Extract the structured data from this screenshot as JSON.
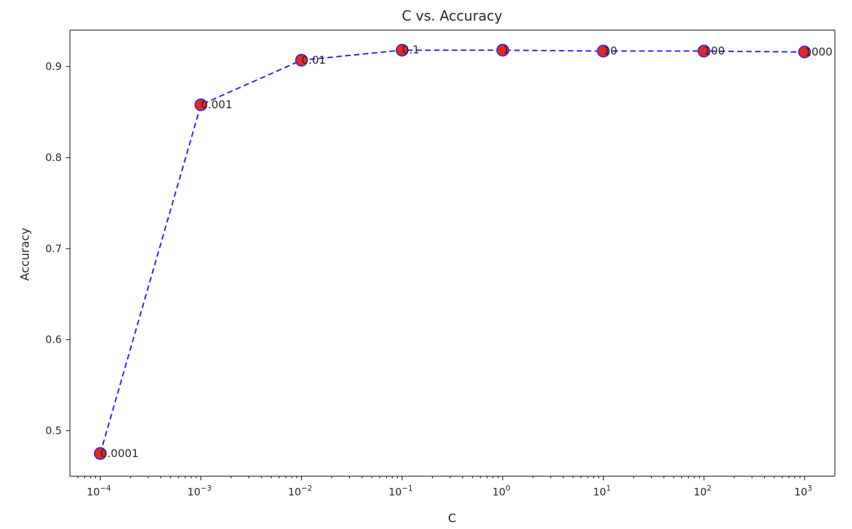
{
  "chart_data": {
    "type": "line",
    "title": "C vs. Accuracy",
    "xlabel": "C",
    "ylabel": "Accuracy",
    "xscale": "log",
    "grid": false,
    "legend": "none",
    "x": [
      0.0001,
      0.001,
      0.01,
      0.1,
      1,
      10,
      100,
      1000
    ],
    "series": [
      {
        "values": [
          0.475,
          0.858,
          0.907,
          0.918,
          0.918,
          0.917,
          0.917,
          0.916
        ],
        "line_color": "#1f1fff",
        "line_style": "dashed",
        "marker_fill": "#e8281e",
        "marker_edge": "#1f1fff"
      }
    ],
    "point_labels": [
      "0.0001",
      "0.001",
      "0.01",
      "0.1",
      "1",
      "10",
      "100",
      "1000"
    ],
    "xlim": [
      5e-05,
      2000
    ],
    "ylim": [
      0.45,
      0.94
    ],
    "x_ticks": [
      {
        "base": "10",
        "exp": "−4"
      },
      {
        "base": "10",
        "exp": "−3"
      },
      {
        "base": "10",
        "exp": "−2"
      },
      {
        "base": "10",
        "exp": "−1"
      },
      {
        "base": "10",
        "exp": "0"
      },
      {
        "base": "10",
        "exp": "1"
      },
      {
        "base": "10",
        "exp": "2"
      },
      {
        "base": "10",
        "exp": "3"
      }
    ],
    "y_ticks": [
      "0.5",
      "0.6",
      "0.7",
      "0.8",
      "0.9"
    ]
  }
}
